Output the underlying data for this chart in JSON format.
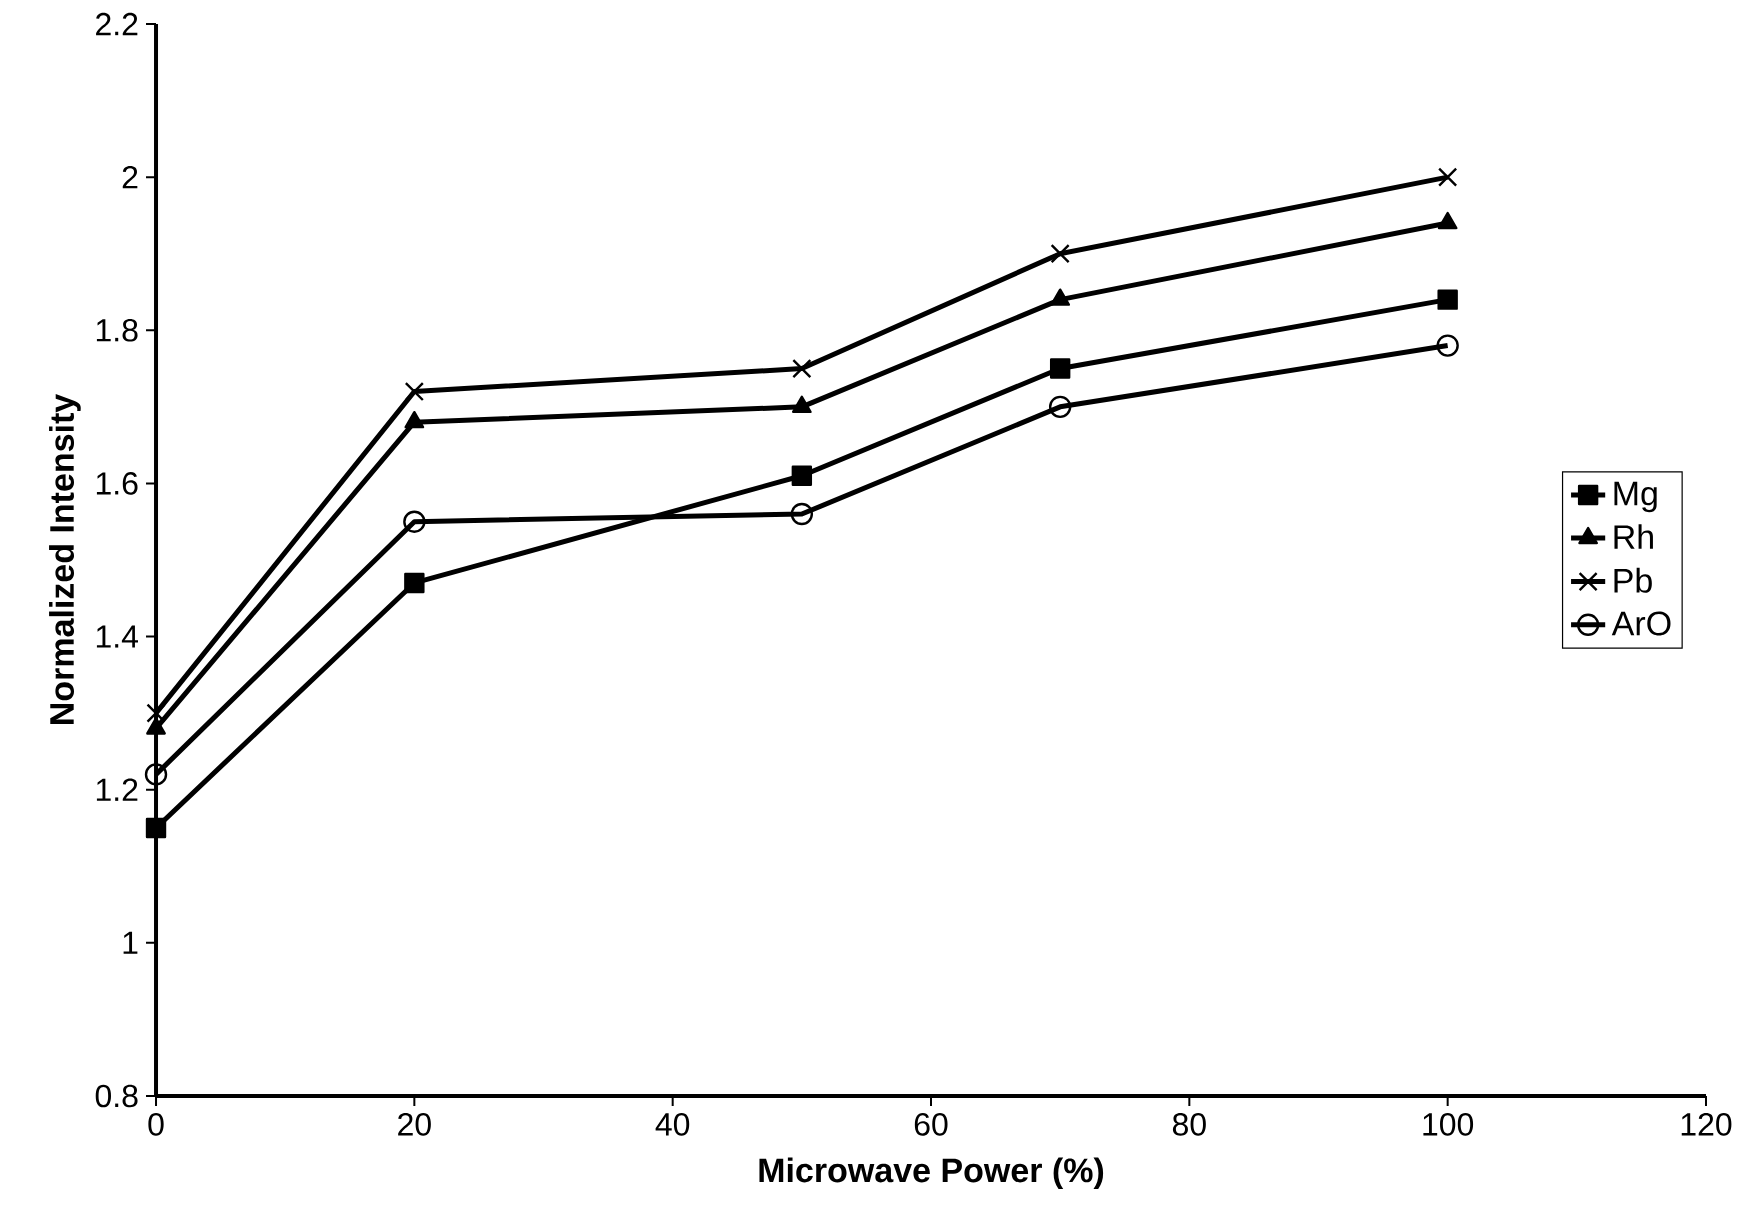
{
  "chart_data": {
    "type": "line",
    "xlabel": "Microwave Power (%)",
    "ylabel": "Normalized Intensity",
    "x": [
      0,
      20,
      50,
      70,
      100
    ],
    "series": [
      {
        "name": "Mg",
        "color": "#000000",
        "marker": "square",
        "values": [
          1.15,
          1.47,
          1.61,
          1.75,
          1.84
        ]
      },
      {
        "name": "Rh",
        "color": "#000000",
        "marker": "triangle",
        "values": [
          1.28,
          1.68,
          1.7,
          1.84,
          1.94
        ]
      },
      {
        "name": "Pb",
        "color": "#000000",
        "marker": "cross",
        "values": [
          1.3,
          1.72,
          1.75,
          1.9,
          2.0
        ]
      },
      {
        "name": "ArO",
        "color": "#000000",
        "marker": "circle",
        "values": [
          1.22,
          1.55,
          1.56,
          1.7,
          1.78
        ]
      }
    ],
    "xlim": [
      0,
      120
    ],
    "xticks": [
      0,
      20,
      40,
      60,
      80,
      100,
      120
    ],
    "ylim": [
      0.8,
      2.2
    ],
    "yticks": [
      0.8,
      1,
      1.2,
      1.4,
      1.6,
      1.8,
      2,
      2.2
    ],
    "grid": false,
    "legend": "right",
    "line_style": "solid"
  }
}
